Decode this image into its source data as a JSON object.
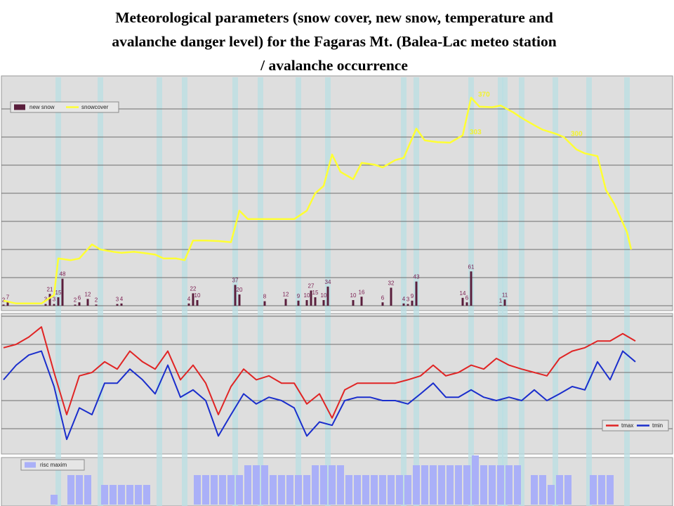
{
  "title": [
    "Meteorological parameters (snow cover, new snow, temperature and",
    "avalanche danger level) for the Fagaras Mt. (Balea-Lac meteo station",
    "/ avalanche occurrence"
  ],
  "avalanche_occurrence": {
    "color": "#b9dfe3",
    "days": [
      13,
      23,
      37,
      43,
      55,
      61,
      70,
      77,
      95,
      98,
      111,
      118,
      119,
      123,
      131,
      139,
      148
    ]
  },
  "chart_data": [
    {
      "type": "combo",
      "xlim": [
        0,
        158
      ],
      "ylim": [
        0,
        400
      ],
      "yticks": [
        0,
        50,
        100,
        150,
        200,
        250,
        300,
        350
      ],
      "grid": true,
      "legend": "top-left",
      "series": [
        {
          "name": "new snow",
          "type": "bar",
          "color": "#5a1e3c",
          "x": [
            0,
            1,
            10,
            11,
            12,
            13,
            14,
            17,
            18,
            20,
            22,
            27,
            28,
            44,
            45,
            46,
            55,
            56,
            62,
            67,
            70,
            72,
            73,
            74,
            76,
            77,
            83,
            85,
            90,
            92,
            95,
            96,
            97,
            98,
            109,
            110,
            111,
            118,
            119
          ],
          "values": [
            2,
            7,
            3,
            21,
            3,
            15,
            48,
            2,
            6,
            12,
            2,
            3,
            4,
            4,
            22,
            10,
            37,
            20,
            8,
            12,
            9,
            10,
            27,
            15,
            10,
            34,
            10,
            16,
            6,
            32,
            4,
            3,
            9,
            43,
            14,
            6,
            61,
            1,
            11
          ]
        },
        {
          "name": "snowcover",
          "type": "line",
          "color": "#ffff33",
          "x": [
            0,
            3,
            9,
            12,
            13,
            16,
            18,
            21,
            23,
            26,
            28,
            31,
            33,
            36,
            38,
            41,
            43,
            45,
            48,
            51,
            54,
            56,
            58,
            62,
            65,
            69,
            72,
            74,
            76,
            78,
            80,
            83,
            85,
            88,
            90,
            93,
            95,
            98,
            100,
            103,
            106,
            109,
            111,
            113,
            116,
            118,
            121,
            123,
            126,
            128,
            131,
            133,
            136,
            138,
            141,
            143,
            145,
            148,
            149
          ],
          "values": [
            9,
            4,
            4,
            19,
            84,
            81,
            84,
            109,
            100,
            96,
            94,
            96,
            94,
            91,
            84,
            84,
            81,
            116,
            116,
            115,
            113,
            169,
            154,
            154,
            154,
            154,
            169,
            200,
            213,
            269,
            238,
            225,
            254,
            251,
            246,
            259,
            263,
            315,
            294,
            291,
            290,
            303,
            370,
            354,
            353,
            356,
            344,
            334,
            321,
            313,
            306,
            300,
            278,
            271,
            266,
            206,
            181,
            131,
            100
          ],
          "value_labels": [
            null,
            null,
            null,
            null,
            null,
            null,
            null,
            null,
            null,
            null,
            null,
            null,
            null,
            null,
            null,
            null,
            null,
            null,
            null,
            null,
            null,
            null,
            null,
            null,
            null,
            null,
            null,
            null,
            null,
            null,
            null,
            null,
            null,
            null,
            null,
            null,
            null,
            null,
            null,
            null,
            null,
            "303",
            "370",
            null,
            null,
            null,
            null,
            null,
            null,
            null,
            null,
            "300",
            null,
            null,
            null,
            null,
            null,
            null,
            null
          ]
        }
      ]
    },
    {
      "type": "line",
      "xlim": [
        0,
        158
      ],
      "ylim": [
        -14,
        10.5
      ],
      "yticks": [
        -10,
        -5,
        0,
        5,
        10
      ],
      "grid": true,
      "legend": "bottom-right",
      "series": [
        {
          "name": "tmax",
          "type": "line",
          "color": "#e02424",
          "x": [
            0,
            3,
            6,
            9,
            12,
            15,
            18,
            21,
            24,
            27,
            30,
            33,
            36,
            39,
            42,
            45,
            48,
            51,
            54,
            57,
            60,
            63,
            66,
            69,
            72,
            75,
            78,
            81,
            84,
            87,
            90,
            93,
            96,
            99,
            102,
            105,
            108,
            111,
            114,
            117,
            120,
            123,
            126,
            129,
            132,
            135,
            138,
            141,
            144,
            147,
            150
          ],
          "values": [
            4.4,
            5,
            6.3,
            8.1,
            0,
            -7.5,
            -0.6,
            0,
            1.9,
            0.6,
            3.8,
            1.9,
            0.6,
            3.8,
            -1.3,
            1.3,
            -1.9,
            -7.5,
            -2.5,
            0.6,
            -1.3,
            -0.6,
            -1.9,
            -1.9,
            -5.6,
            -3.8,
            -8.1,
            -3.1,
            -1.9,
            -1.9,
            -1.9,
            -1.9,
            -1.3,
            -0.6,
            1.3,
            -0.6,
            0,
            1.3,
            0.6,
            2.5,
            1.3,
            0.6,
            0,
            -0.6,
            2.5,
            3.8,
            4.4,
            5.6,
            5.6,
            6.9,
            5.6
          ]
        },
        {
          "name": "tmin",
          "type": "line",
          "color": "#1a2ecc",
          "x": [
            0,
            3,
            6,
            9,
            12,
            15,
            18,
            21,
            24,
            27,
            30,
            33,
            36,
            39,
            42,
            45,
            48,
            51,
            54,
            57,
            60,
            63,
            66,
            69,
            72,
            75,
            78,
            81,
            84,
            87,
            90,
            93,
            96,
            99,
            102,
            105,
            108,
            111,
            114,
            117,
            120,
            123,
            126,
            129,
            132,
            135,
            138,
            141,
            144,
            147,
            150
          ],
          "values": [
            -1.3,
            1.3,
            3.1,
            3.8,
            -2.5,
            -11.9,
            -6.3,
            -7.5,
            -1.9,
            -1.9,
            0.6,
            -1.3,
            -3.8,
            1.3,
            -4.4,
            -3.1,
            -5,
            -11.3,
            -7.5,
            -3.8,
            -5.6,
            -4.4,
            -5,
            -6.3,
            -11.3,
            -8.8,
            -9.4,
            -5,
            -4.4,
            -4.4,
            -5,
            -5,
            -5.6,
            -3.8,
            -1.9,
            -4.4,
            -4.4,
            -3.1,
            -4.4,
            -5,
            -4.4,
            -5,
            -3.1,
            -5,
            -3.8,
            -2.5,
            -3.1,
            1.9,
            -1.3,
            3.8,
            1.9
          ]
        }
      ]
    },
    {
      "type": "bar",
      "xlim": [
        0,
        158
      ],
      "ylim": [
        0,
        5
      ],
      "grid": false,
      "legend": "top-left",
      "series": [
        {
          "name": "risc maxim",
          "type": "bar",
          "color": "#aab0f8",
          "x": [
            12,
            14,
            16,
            18,
            20,
            22,
            24,
            26,
            28,
            30,
            32,
            34,
            36,
            38,
            40,
            42,
            44,
            46,
            48,
            50,
            52,
            54,
            56,
            58,
            60,
            62,
            64,
            66,
            68,
            70,
            72,
            74,
            76,
            78,
            80,
            82,
            84,
            86,
            88,
            90,
            92,
            94,
            96,
            98,
            100,
            102,
            104,
            106,
            108,
            110,
            112,
            114,
            116,
            118,
            120,
            122,
            124,
            126,
            128,
            130,
            132,
            134,
            136,
            138,
            140,
            142,
            144
          ],
          "values": [
            1,
            null,
            3,
            3,
            3,
            null,
            2,
            2,
            2,
            2,
            2,
            2,
            null,
            null,
            null,
            null,
            null,
            3,
            3,
            3,
            3,
            3,
            3,
            4,
            4,
            4,
            3,
            3,
            3,
            3,
            3,
            4,
            4,
            4,
            4,
            3,
            3,
            3,
            3,
            3,
            3,
            3,
            3,
            4,
            4,
            4,
            4,
            4,
            4,
            4,
            5,
            4,
            4,
            4,
            4,
            4,
            null,
            3,
            3,
            2,
            3,
            3,
            null,
            null,
            3,
            3,
            3
          ]
        }
      ]
    }
  ]
}
